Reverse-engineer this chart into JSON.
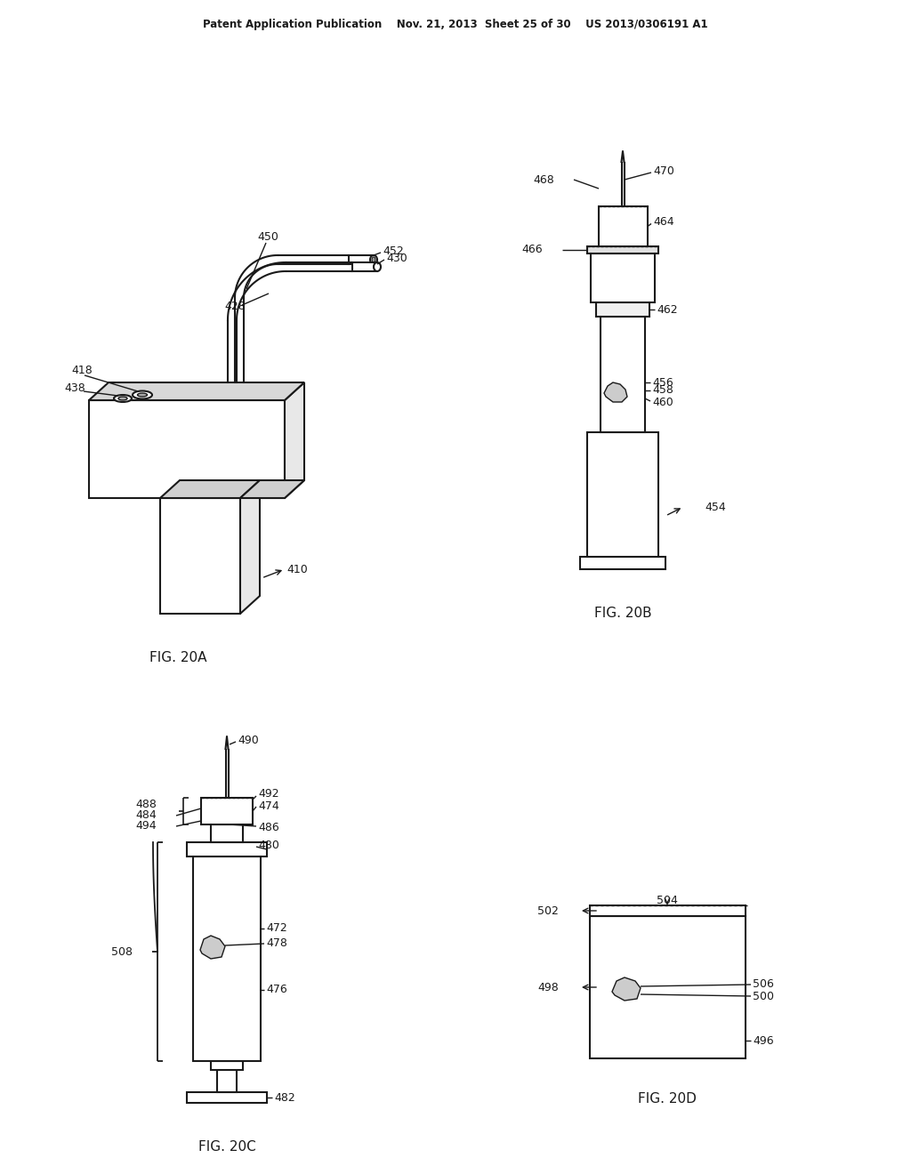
{
  "bg_color": "#ffffff",
  "line_color": "#1a1a1a",
  "text_color": "#1a1a1a",
  "header_text": "Patent Application Publication    Nov. 21, 2013  Sheet 25 of 30    US 2013/0306191 A1",
  "fig20a_label": "FIG. 20A",
  "fig20b_label": "FIG. 20B",
  "fig20c_label": "FIG. 20C",
  "fig20d_label": "FIG. 20D"
}
